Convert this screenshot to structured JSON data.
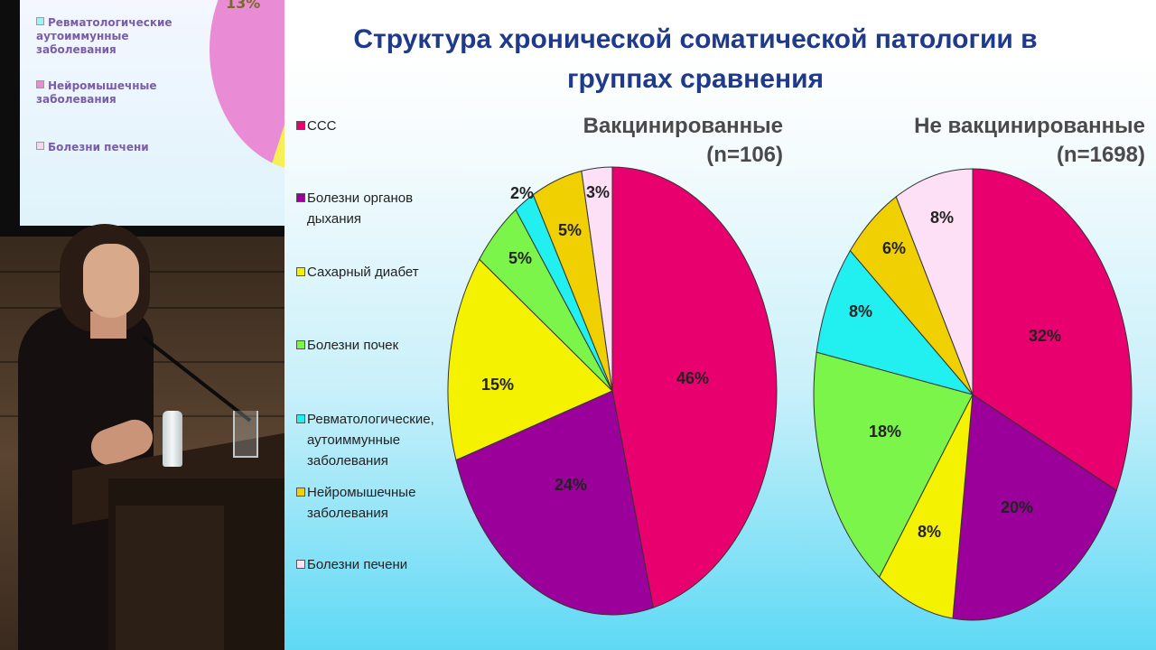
{
  "slide": {
    "title": "Структура хронической соматической патологии в\nгруппах сравнения"
  },
  "background_slide": {
    "legend": [
      {
        "label": "Ревматологические\nаутоиммунные\nзаболевания",
        "color": "#9ff2f7"
      },
      {
        "label": "Нейромышечные\nзаболевания",
        "color": "#e98bd5"
      },
      {
        "label": "Болезни печени",
        "color": "#f6d7f0"
      }
    ],
    "visible_label": "13%"
  },
  "colors": {
    "ccc": "#e8006e",
    "respiratory": "#9b009b",
    "diabetes": "#f5f200",
    "kidney": "#7cf54a",
    "rheum": "#22f0f0",
    "neuro": "#f0d000",
    "liver": "#fde0f5"
  },
  "chart_data": [
    {
      "type": "pie",
      "title": "Вакцинированные",
      "subtitle": "(n=106)",
      "categories": [
        "ССС",
        "Болезни органов дыхания",
        "Сахарный диабет",
        "Болезни почек",
        "Ревматологические, аутоиммунные заболевания",
        "Нейромышечные заболевания",
        "Болезни печени"
      ],
      "values": [
        46,
        24,
        15,
        5,
        2,
        5,
        3
      ],
      "labels": [
        "46%",
        "24%",
        "15%",
        "5%",
        "2%",
        "5%",
        "3%"
      ]
    },
    {
      "type": "pie",
      "title": "Не вакцинированные",
      "subtitle": "(n=1698)",
      "categories": [
        "ССС",
        "Болезни органов дыхания",
        "Сахарный диабет",
        "Болезни почек",
        "Ревматологические, аутоиммунные заболевания",
        "Нейромышечные заболевания",
        "Болезни печени"
      ],
      "values": [
        32,
        20,
        8,
        18,
        8,
        6,
        8
      ],
      "labels": [
        "32%",
        "20%",
        "8%",
        "18%",
        "8%",
        "6%",
        "8%"
      ]
    }
  ],
  "legend": [
    {
      "label": "ССС",
      "color": "#e8006e"
    },
    {
      "label": "Болезни органов\nдыхания",
      "color": "#9b009b"
    },
    {
      "label": "Сахарный диабет",
      "color": "#f5f200"
    },
    {
      "label": "Болезни почек",
      "color": "#7cf54a"
    },
    {
      "label": "Ревматологические,\nаутоиммунные\nзаболевания",
      "color": "#22f0f0"
    },
    {
      "label": "Нейромышечные\nзаболевания",
      "color": "#f0d000"
    },
    {
      "label": "Болезни печени",
      "color": "#fde0f5"
    }
  ]
}
